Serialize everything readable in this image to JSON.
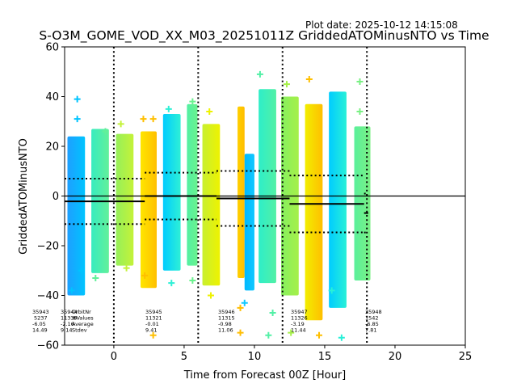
{
  "chart_data": {
    "type": "scatter",
    "title": "S-O3M_GOME_VOD_XX_M03_20251011Z GriddedATOMinusNTO vs Time",
    "plot_date": "Plot date: 2025-10-12 14:15:08",
    "xlabel": "Time from Forecast 00Z [Hour]",
    "ylabel": "GriddedATOMinusNTO",
    "xlim": [
      -3.5,
      25
    ],
    "ylim": [
      -60,
      60
    ],
    "xticks": [
      0,
      5,
      10,
      15,
      20,
      25
    ],
    "yticks": [
      -60,
      -40,
      -20,
      0,
      20,
      40,
      60
    ],
    "xtick_labels": [
      "0",
      "5",
      "10",
      "15",
      "20",
      "25"
    ],
    "ytick_labels": [
      "−60",
      "−40",
      "−20",
      "0",
      "20",
      "40",
      "60"
    ],
    "forecast_markers_x": [
      0,
      6,
      12,
      18
    ],
    "zero_line_y": 0,
    "annotation_row_labels": [
      "OrbitNr",
      "#Values",
      "Average",
      "Stdev"
    ],
    "orbits": [
      {
        "orbit": "35943",
        "values": "5237",
        "average": "-6.05",
        "stdev": "14.49",
        "mean": -6.05,
        "sd": 14.49,
        "x_start": null,
        "x_end": null
      },
      {
        "orbit": "35944",
        "values": "11339",
        "average": "-2.16",
        "stdev": "9.14",
        "mean": -2.16,
        "sd": 9.14,
        "x_start": -3.5,
        "x_end": 2.2
      },
      {
        "orbit": "35945",
        "values": "11321",
        "average": "-0.01",
        "stdev": "9.41",
        "mean": -0.01,
        "sd": 9.41,
        "x_start": 2.2,
        "x_end": 7.3
      },
      {
        "orbit": "35946",
        "values": "11315",
        "average": "-0.98",
        "stdev": "11.06",
        "mean": -0.98,
        "sd": 11.06,
        "x_start": 7.3,
        "x_end": 12.5
      },
      {
        "orbit": "35947",
        "values": "11326",
        "average": "-3.19",
        "stdev": "11.44",
        "mean": -3.19,
        "sd": 11.44,
        "x_start": 12.5,
        "x_end": 17.8
      },
      {
        "orbit": "35948",
        "values": "1542",
        "average": "-6.85",
        "stdev": "7.81",
        "mean": -6.85,
        "sd": 7.81,
        "x_start": 17.8,
        "x_end": 18.1
      }
    ],
    "strips": [
      {
        "x0": -3.3,
        "x1": -2.05,
        "ymin": -40,
        "ymax": 24,
        "c0": "#1e9fff",
        "c1": "#00c4ff",
        "outliers": [
          [
            -3.0,
            -38
          ],
          [
            -2.6,
            39
          ],
          [
            -2.6,
            31
          ],
          [
            -2.3,
            -30
          ]
        ]
      },
      {
        "x0": -1.6,
        "x1": -0.35,
        "ymin": -31,
        "ymax": 27,
        "c0": "#38ecc0",
        "c1": "#62f09a",
        "outliers": [
          [
            -1.3,
            -33
          ],
          [
            -0.6,
            26
          ]
        ]
      },
      {
        "x0": 0.15,
        "x1": 1.4,
        "ymin": -28,
        "ymax": 25,
        "c0": "#96f05a",
        "c1": "#c4f238",
        "outliers": [
          [
            0.5,
            29
          ],
          [
            0.9,
            -29
          ]
        ]
      },
      {
        "x0": 1.9,
        "x1": 3.05,
        "ymin": -37,
        "ymax": 26,
        "c0": "#ffe600",
        "c1": "#ffbf00",
        "outliers": [
          [
            2.1,
            31
          ],
          [
            2.8,
            31
          ],
          [
            2.8,
            -56
          ],
          [
            2.2,
            -32
          ]
        ]
      },
      {
        "x0": 3.5,
        "x1": 4.75,
        "ymin": -30,
        "ymax": 33,
        "c0": "#00ccff",
        "c1": "#2ef0d6",
        "outliers": [
          [
            3.9,
            35
          ],
          [
            4.1,
            -35
          ]
        ]
      },
      {
        "x0": 5.2,
        "x1": 5.95,
        "ymin": -28,
        "ymax": 37,
        "c0": "#52f0a4",
        "c1": "#6af28e",
        "outliers": [
          [
            5.6,
            -34
          ],
          [
            5.6,
            38
          ]
        ]
      },
      {
        "x0": 6.3,
        "x1": 7.55,
        "ymin": -36,
        "ymax": 29,
        "c0": "#c8f030",
        "c1": "#eef200",
        "outliers": [
          [
            6.9,
            -40
          ],
          [
            6.8,
            34
          ]
        ]
      },
      {
        "x0": 8.8,
        "x1": 9.3,
        "ymin": -33,
        "ymax": 36,
        "c0": "#ffd000",
        "c1": "#ffbd00",
        "outliers": [
          [
            9.0,
            -55
          ],
          [
            9.0,
            -45
          ]
        ]
      },
      {
        "x0": 9.3,
        "x1": 10.0,
        "ymin": -38,
        "ymax": 17,
        "c0": "#00b8ff",
        "c1": "#10c8ff",
        "outliers": [
          [
            9.3,
            -43
          ]
        ]
      },
      {
        "x0": 10.3,
        "x1": 11.55,
        "ymin": -35,
        "ymax": 43,
        "c0": "#2eeec8",
        "c1": "#52f0a6",
        "outliers": [
          [
            10.4,
            49
          ],
          [
            11.0,
            -56
          ],
          [
            11.3,
            -47
          ]
        ]
      },
      {
        "x0": 11.9,
        "x1": 13.15,
        "ymin": -40,
        "ymax": 40,
        "c0": "#86f060",
        "c1": "#a6f048",
        "outliers": [
          [
            12.6,
            -55
          ],
          [
            12.3,
            45
          ]
        ]
      },
      {
        "x0": 13.6,
        "x1": 14.85,
        "ymin": -50,
        "ymax": 37,
        "c0": "#f2ee00",
        "c1": "#ffbf00",
        "outliers": [
          [
            13.9,
            47
          ],
          [
            14.6,
            -56
          ]
        ]
      },
      {
        "x0": 15.3,
        "x1": 16.55,
        "ymin": -45,
        "ymax": 42,
        "c0": "#00ccff",
        "c1": "#28f0d8",
        "outliers": [
          [
            15.5,
            -38
          ],
          [
            16.2,
            -57
          ]
        ]
      },
      {
        "x0": 17.1,
        "x1": 18.25,
        "ymin": -34,
        "ymax": 28,
        "c0": "#5af09c",
        "c1": "#7af084",
        "outliers": [
          [
            17.5,
            46
          ],
          [
            17.5,
            34
          ]
        ]
      }
    ]
  }
}
